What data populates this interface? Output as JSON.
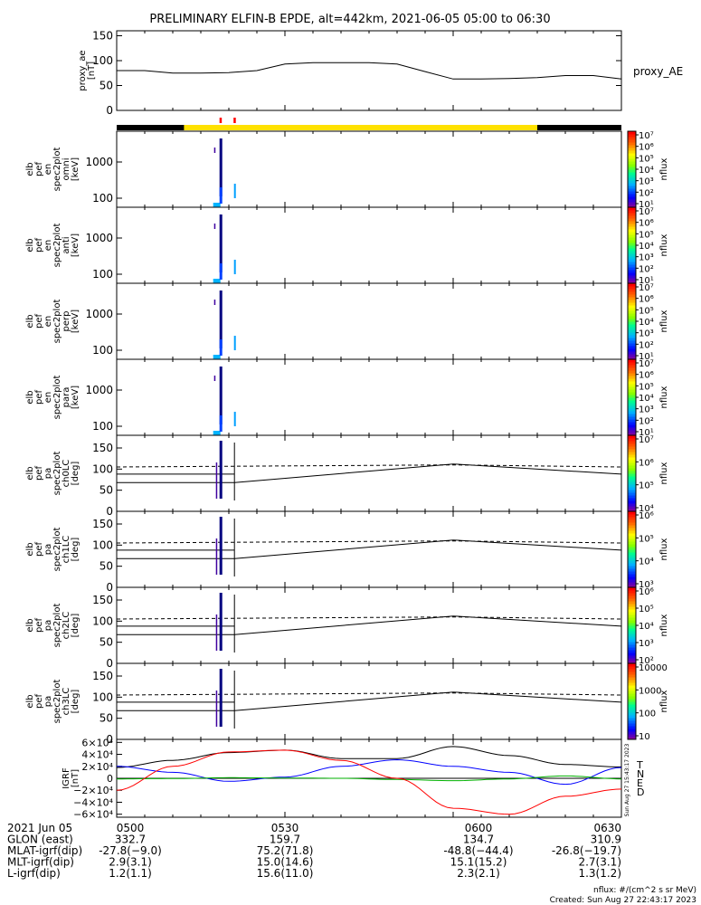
{
  "title": "PRELIMINARY ELFIN-B EPDE, alt=442km, 2021-06-05 05:00 to 06:30",
  "colors": {
    "background": "#ffffff",
    "ink": "#000000",
    "sunlit": "#ffe100",
    "eclipse": "#000000",
    "science_mark": "#ff0000"
  },
  "ae_panel": {
    "ylabel": [
      "proxy_ae",
      "[nT]"
    ],
    "yticks": [
      "0",
      "50",
      "100",
      "150"
    ],
    "ylim": [
      0,
      160
    ],
    "legend": "proxy_AE"
  },
  "spec_panels": [
    {
      "ylabel": [
        "elb",
        "pef",
        "en",
        "spec2plot",
        "omni",
        "[keV]"
      ],
      "yticks": [
        "100",
        "1000"
      ]
    },
    {
      "ylabel": [
        "elb",
        "pef",
        "en",
        "spec2plot",
        "anti",
        "[keV]"
      ],
      "yticks": [
        "100",
        "1000"
      ]
    },
    {
      "ylabel": [
        "elb",
        "pef",
        "en",
        "spec2plot",
        "perp",
        "[keV]"
      ],
      "yticks": [
        "100",
        "1000"
      ]
    },
    {
      "ylabel": [
        "elb",
        "pef",
        "en",
        "spec2plot",
        "para",
        "[keV]"
      ],
      "yticks": [
        "100",
        "1000"
      ]
    }
  ],
  "pa_panels": [
    {
      "ylabel": [
        "elb",
        "pef",
        "pa",
        "spec2plot",
        "ch0LC",
        "[deg]"
      ],
      "yticks": [
        "0",
        "50",
        "100",
        "150"
      ]
    },
    {
      "ylabel": [
        "elb",
        "pef",
        "pa",
        "spec2plot",
        "ch1LC",
        "[deg]"
      ],
      "yticks": [
        "0",
        "50",
        "100",
        "150"
      ]
    },
    {
      "ylabel": [
        "elb",
        "pef",
        "pa",
        "spec2plot",
        "ch2LC",
        "[deg]"
      ],
      "yticks": [
        "0",
        "50",
        "100",
        "150"
      ]
    },
    {
      "ylabel": [
        "elb",
        "pef",
        "pa",
        "spec2plot",
        "ch3LC",
        "[deg]"
      ],
      "yticks": [
        "0",
        "50",
        "100",
        "150"
      ]
    }
  ],
  "colorbars": [
    {
      "ticks": [
        "10¹",
        "10²",
        "10³",
        "10⁴",
        "10⁵",
        "10⁶",
        "10⁷"
      ],
      "label": "nflux"
    },
    {
      "ticks": [
        "10¹",
        "10²",
        "10³",
        "10⁴",
        "10⁵",
        "10⁶",
        "10⁷"
      ],
      "label": "nflux"
    },
    {
      "ticks": [
        "10¹",
        "10²",
        "10³",
        "10⁴",
        "10⁵",
        "10⁶",
        "10⁷"
      ],
      "label": "nflux"
    },
    {
      "ticks": [
        "10¹",
        "10²",
        "10³",
        "10⁴",
        "10⁵",
        "10⁶",
        "10⁷"
      ],
      "label": "nflux"
    },
    {
      "ticks": [
        "10⁴",
        "10⁵",
        "10⁶",
        "10⁷"
      ],
      "label": "nflux"
    },
    {
      "ticks": [
        "10³",
        "10⁴",
        "10⁵",
        "10⁶"
      ],
      "label": "nflux"
    },
    {
      "ticks": [
        "10²",
        "10³",
        "10⁴",
        "10⁵",
        "10⁶"
      ],
      "label": "nflux"
    },
    {
      "ticks": [
        "10",
        "100",
        "1000",
        "10000"
      ],
      "label": "nflux"
    }
  ],
  "igrf_panel": {
    "ylabel": [
      "IGRF",
      "[nT]"
    ],
    "yticks": [
      "−6×10⁴",
      "−4×10⁴",
      "−2×10⁴",
      "0",
      "2×10⁴",
      "4×10⁴",
      "6×10⁴"
    ],
    "legend": [
      {
        "name": "T",
        "color": "#000000"
      },
      {
        "name": "N",
        "color": "#0000ff"
      },
      {
        "name": "E",
        "color": "#00b000"
      },
      {
        "name": "D",
        "color": "#ff0000"
      }
    ]
  },
  "side_stamp": "Sun Aug 27 15:43:17 2023",
  "footer": {
    "rows": [
      {
        "label": "2021 Jun 05",
        "values": [
          "0500",
          "0530",
          "0600",
          "0630"
        ]
      },
      {
        "label": "GLON (east)",
        "values": [
          "332.7",
          "159.7",
          "134.7",
          "310.9"
        ]
      },
      {
        "label": "MLAT-igrf(dip)",
        "values": [
          "-27.8(−9.0)",
          "75.2(71.8)",
          "-48.8(−44.4)",
          "-26.8(−19.7)"
        ]
      },
      {
        "label": "MLT-igrf(dip)",
        "values": [
          "2.9(3.1)",
          "15.0(14.6)",
          "15.1(15.2)",
          "2.7(3.1)"
        ]
      },
      {
        "label": "L-igrf(dip)",
        "values": [
          "1.2(1.1)",
          "15.6(11.0)",
          "2.3(2.1)",
          "1.3(1.2)"
        ]
      }
    ],
    "units": "nflux: #/(cm^2 s sr MeV)",
    "created": "Created: Sun Aug 27 22:43:17 2023"
  },
  "chart_data": {
    "type": "line",
    "title": "PRELIMINARY ELFIN-B EPDE, alt=442km, 2021-06-05 05:00 to 06:30",
    "x_minutes": [
      0,
      5,
      10,
      15,
      20,
      25,
      30,
      35,
      40,
      45,
      50,
      55,
      60,
      65,
      70,
      75,
      80,
      85,
      90
    ],
    "xtick_labels": [
      "0500",
      "0530",
      "0600",
      "0630"
    ],
    "xlim_minutes": [
      0,
      90
    ],
    "series": [
      {
        "name": "proxy_AE",
        "unit": "nT",
        "values": [
          80,
          80,
          75,
          75,
          76,
          80,
          93,
          96,
          96,
          96,
          93,
          78,
          63,
          63,
          64,
          66,
          70,
          70,
          63
        ]
      }
    ],
    "sunlit_interval_minutes": [
      12,
      75
    ],
    "science_zone_minutes": [
      18.5,
      21
    ],
    "igrf": {
      "x_minutes": [
        0,
        10,
        20,
        30,
        40,
        50,
        60,
        70,
        80,
        90
      ],
      "T": [
        18000,
        30000,
        43000,
        47000,
        33000,
        33000,
        53000,
        38000,
        23000,
        19000
      ],
      "N": [
        20000,
        10000,
        -5000,
        2000,
        20000,
        31000,
        20000,
        10000,
        -10000,
        18000
      ],
      "E": [
        -1000,
        -500,
        1000,
        500,
        0,
        -2000,
        -4000,
        -1000,
        4000,
        -1000
      ],
      "D": [
        -20000,
        20000,
        44000,
        47000,
        30000,
        0,
        -50000,
        -60000,
        -30000,
        -18000
      ],
      "ylim": [
        -65000,
        65000
      ]
    },
    "pitch_angle_lines": {
      "dashed_deg": [
        105,
        110,
        105
      ],
      "solid_deg": [
        68,
        112,
        88
      ],
      "ylim": [
        0,
        180
      ]
    }
  }
}
